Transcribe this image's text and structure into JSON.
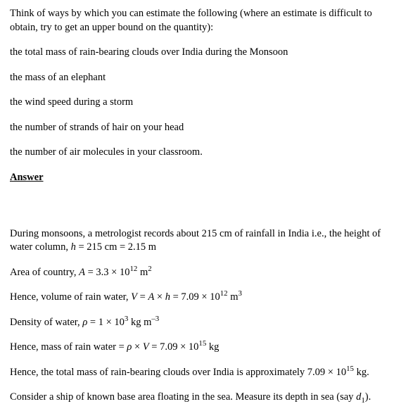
{
  "q": {
    "intro": "Think of ways by which you can estimate the following (where an estimate is difficult to obtain, try to get an upper bound on the quantity):",
    "i1": "the total mass of rain-bearing clouds over India during the Monsoon",
    "i2": "the mass of an elephant",
    "i3": "the wind speed during a storm",
    "i4": "the number of strands of hair on your head",
    "i5": "the number of air molecules in your classroom."
  },
  "ans_label": "Answer",
  "a": {
    "l1a": "During monsoons, a metrologist records about 215 cm of rainfall in India i.e., the height of water column, ",
    "l1b": " = 215 cm = 2.15 m",
    "l2a": "Area of country, ",
    "l2b": " = 3.3 × 10",
    "l2exp": "12",
    "l2c": " m",
    "l2u": "2",
    "l3a": "Hence, volume of rain water, ",
    "l3b": " = ",
    "l3c": " × ",
    "l3d": " = 7.09 × 10",
    "l3exp": "12",
    "l3e": " m",
    "l3u": "3",
    "l4a": "Density of water, ",
    "l4b": " = 1 × 10",
    "l4exp": "3",
    "l4c": " kg m",
    "l4u": "–3",
    "l5a": "Hence, mass of rain water = ",
    "l5b": " × ",
    "l5c": " = 7.09 × 10",
    "l5exp": "15",
    "l5d": " kg",
    "l6a": "Hence, the total mass of rain-bearing clouds over India is approximately 7.09 × 10",
    "l6exp": "15",
    "l6b": " kg.",
    "l7a": "Consider a ship of known base area floating in the sea. Measure its depth in sea (say ",
    "l7b": ")."
  },
  "sym": {
    "h": "h",
    "A": "A",
    "V": "V",
    "rho": "ρ",
    "d": "d",
    "one": "1"
  }
}
